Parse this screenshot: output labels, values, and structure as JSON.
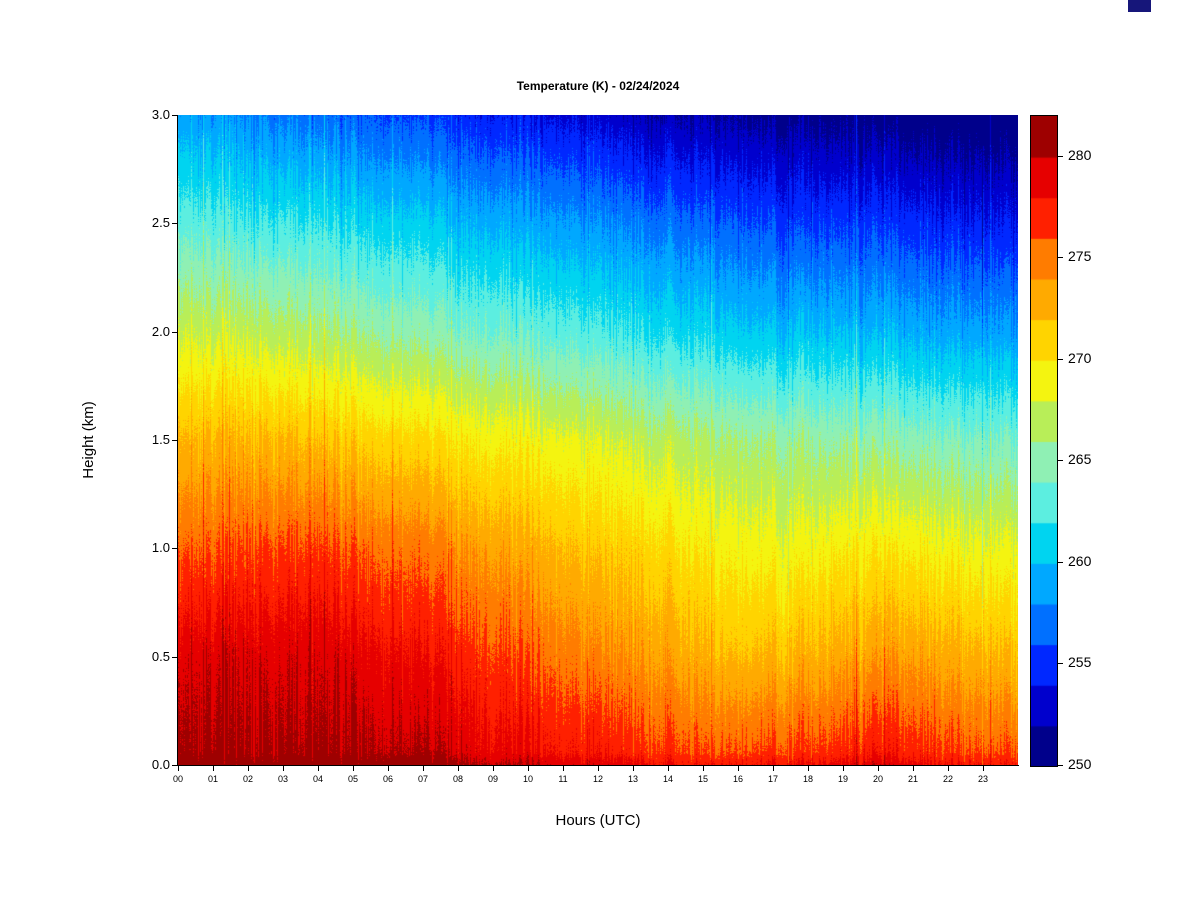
{
  "window_artifact": {
    "color": "#16167a"
  },
  "chart_data": {
    "type": "heatmap",
    "title": "Temperature (K) - 02/24/2024",
    "xlabel": "Hours (UTC)",
    "ylabel": "Height (km)",
    "x_range": [
      0,
      24
    ],
    "y_range": [
      0,
      3
    ],
    "x_ticks": [
      "00",
      "01",
      "02",
      "03",
      "04",
      "05",
      "06",
      "07",
      "08",
      "09",
      "10",
      "11",
      "12",
      "13",
      "14",
      "15",
      "16",
      "17",
      "18",
      "19",
      "20",
      "21",
      "22",
      "23"
    ],
    "y_ticks": [
      "0.0",
      "0.5",
      "1.0",
      "1.5",
      "2.0",
      "2.5",
      "3.0"
    ],
    "grid": "off",
    "legend_position": "right-colorbar",
    "hours": [
      0,
      1,
      2,
      3,
      4,
      5,
      6,
      7,
      8,
      9,
      10,
      11,
      12,
      13,
      14,
      15,
      16,
      17,
      18,
      19,
      20,
      21,
      22,
      23,
      24
    ],
    "heights_km": [
      0.0,
      0.5,
      1.0,
      1.5,
      2.0,
      2.5,
      3.0
    ],
    "temperature_grid_K": [
      [
        281,
        281,
        281,
        281,
        281,
        281,
        280.5,
        280.5,
        280,
        279,
        279,
        278,
        278,
        277.5,
        277,
        276.5,
        276.5,
        277,
        277,
        277.5,
        278,
        277.5,
        277,
        276.5,
        276.5
      ],
      [
        279.5,
        279.5,
        279.5,
        279.5,
        279.5,
        279,
        278.5,
        278,
        277.5,
        276.5,
        276,
        275,
        274.5,
        274,
        273.5,
        272.5,
        272,
        272.5,
        272.5,
        273,
        273.5,
        273.5,
        273,
        272.5,
        272
      ],
      [
        276,
        276,
        276.5,
        276.5,
        276.5,
        276,
        275.5,
        275,
        274.5,
        273.5,
        273,
        272,
        271.5,
        271,
        270.5,
        269.5,
        269,
        269,
        269,
        269.5,
        269.5,
        269.5,
        269,
        268.5,
        268.5
      ],
      [
        272.5,
        272.5,
        272.5,
        272.5,
        272,
        271.5,
        271,
        270.5,
        270,
        269.5,
        269,
        268.5,
        268,
        267.5,
        267,
        266.5,
        266,
        265.8,
        265.5,
        265.3,
        265,
        264.8,
        264.5,
        264.3,
        264
      ],
      [
        268,
        267.5,
        267.5,
        267,
        266.5,
        266,
        265.5,
        265,
        264.5,
        264,
        263.5,
        263,
        262.5,
        262,
        261.5,
        261,
        260.5,
        260.3,
        260,
        259.8,
        259.5,
        259.3,
        259,
        258.8,
        258.5
      ],
      [
        263.5,
        263,
        262.5,
        262.5,
        262,
        261.5,
        261,
        260.5,
        260,
        259.5,
        259,
        258.5,
        258,
        257.5,
        257,
        256.5,
        256,
        255.8,
        255.5,
        255.3,
        255,
        254.8,
        254.5,
        254.3,
        254
      ],
      [
        259,
        258.5,
        258,
        257.5,
        257,
        256.5,
        256,
        255.5,
        255,
        254.5,
        254,
        253.5,
        253,
        252.5,
        252,
        251.8,
        251.5,
        251.2,
        251,
        250.8,
        250.5,
        250.3,
        250.2,
        250.1,
        250
      ]
    ],
    "colorbar": {
      "min": 250,
      "max": 282,
      "band_step": 2,
      "ticks": [
        250,
        255,
        260,
        265,
        270,
        275,
        280
      ],
      "colors": [
        "#00008b",
        "#0000cd",
        "#0028ff",
        "#0070ff",
        "#00a8ff",
        "#00d4f0",
        "#5ceee0",
        "#8ff0b4",
        "#b8ee58",
        "#f4f410",
        "#ffd400",
        "#ffaa00",
        "#ff7c00",
        "#ff2000",
        "#e60000",
        "#9e0000"
      ]
    },
    "noise": {
      "seed": 42,
      "column_amp": 1.3,
      "fine_amp": 0.5,
      "spike_chance": 0.07,
      "surface_boost": 1.2
    }
  }
}
